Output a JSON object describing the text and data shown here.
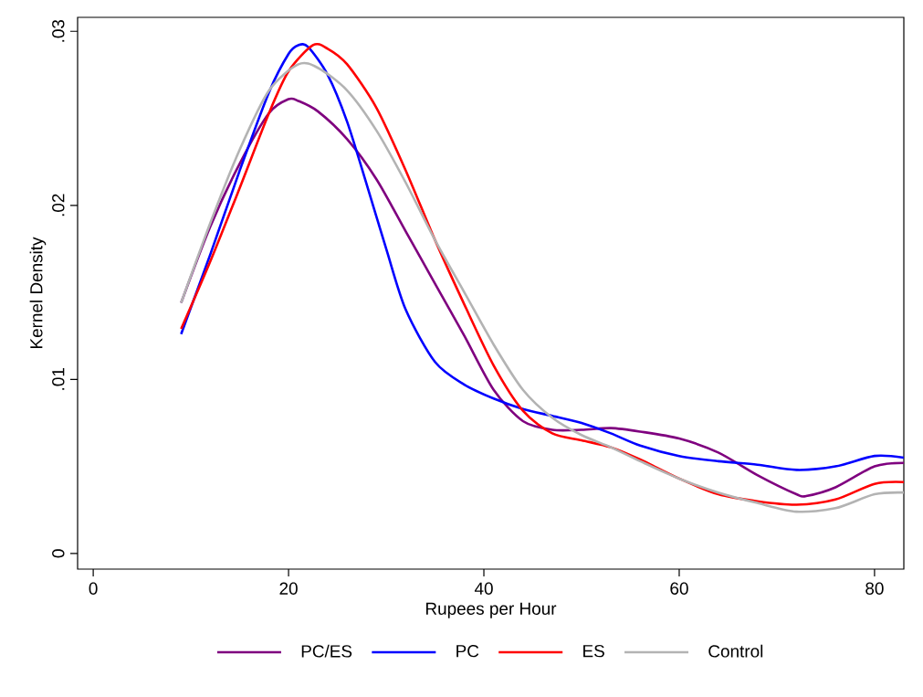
{
  "chart_data": {
    "type": "line",
    "xlabel": "Rupees per Hour",
    "ylabel": "Kernel Density",
    "xlim": [
      -1.6,
      83
    ],
    "ylim": [
      -0.0009,
      0.0308
    ],
    "xticks": [
      0,
      20,
      40,
      60,
      80
    ],
    "yticks": [
      {
        "value": 0,
        "label": "0"
      },
      {
        "value": 0.01,
        "label": ".01"
      },
      {
        "value": 0.02,
        "label": ".02"
      },
      {
        "value": 0.03,
        "label": ".03"
      }
    ],
    "grid": false,
    "legend": "bottom",
    "marker": "none",
    "line_style": "solid",
    "series": [
      {
        "name": "PC/ES",
        "color": "#7f007f",
        "x": [
          9,
          12,
          15,
          18,
          20,
          21,
          23,
          26,
          29,
          32,
          35,
          38,
          41,
          44,
          47,
          50,
          53,
          56,
          60,
          64,
          68,
          72,
          73,
          76,
          80,
          83
        ],
        "values": [
          0.0144,
          0.0188,
          0.0224,
          0.0253,
          0.0261,
          0.026,
          0.0254,
          0.0238,
          0.0215,
          0.0185,
          0.0155,
          0.0125,
          0.0094,
          0.0076,
          0.0071,
          0.0071,
          0.0072,
          0.007,
          0.0066,
          0.0058,
          0.0045,
          0.0034,
          0.0033,
          0.0038,
          0.005,
          0.0052
        ]
      },
      {
        "name": "PC",
        "color": "#0000ff",
        "x": [
          9,
          12,
          15,
          18,
          20,
          21,
          22,
          24,
          26,
          28,
          30,
          32,
          35,
          38,
          41,
          44,
          47,
          50,
          53,
          56,
          60,
          64,
          68,
          72,
          76,
          80,
          83
        ],
        "values": [
          0.0126,
          0.0172,
          0.022,
          0.0265,
          0.0287,
          0.0292,
          0.0291,
          0.0275,
          0.0248,
          0.0212,
          0.0175,
          0.014,
          0.011,
          0.0097,
          0.0089,
          0.0083,
          0.0079,
          0.0075,
          0.0069,
          0.0062,
          0.0056,
          0.0053,
          0.0051,
          0.0048,
          0.005,
          0.0056,
          0.0055
        ]
      },
      {
        "name": "ES",
        "color": "#ff0000",
        "x": [
          9,
          12,
          15,
          18,
          20,
          22.5,
          24,
          26,
          29,
          32,
          35,
          38,
          41,
          44,
          47,
          50,
          53,
          56,
          60,
          64,
          68,
          72,
          76,
          80,
          83
        ],
        "values": [
          0.0129,
          0.0168,
          0.021,
          0.0253,
          0.0277,
          0.0292,
          0.029,
          0.0281,
          0.0256,
          0.022,
          0.018,
          0.0143,
          0.0108,
          0.0082,
          0.0069,
          0.0065,
          0.0061,
          0.0054,
          0.0043,
          0.0034,
          0.003,
          0.0028,
          0.0031,
          0.004,
          0.0041
        ]
      },
      {
        "name": "Control",
        "color": "#b3b3b3",
        "x": [
          9,
          12,
          15,
          18,
          21,
          23,
          26,
          29,
          32,
          35,
          38,
          41,
          44,
          47,
          50,
          53,
          56,
          60,
          64,
          68,
          72,
          76,
          80,
          83
        ],
        "values": [
          0.0144,
          0.019,
          0.0232,
          0.0266,
          0.0281,
          0.0279,
          0.0266,
          0.0243,
          0.0213,
          0.018,
          0.015,
          0.012,
          0.0094,
          0.0078,
          0.0068,
          0.0061,
          0.0053,
          0.0043,
          0.0035,
          0.0029,
          0.0024,
          0.0026,
          0.0034,
          0.0035
        ]
      }
    ]
  }
}
